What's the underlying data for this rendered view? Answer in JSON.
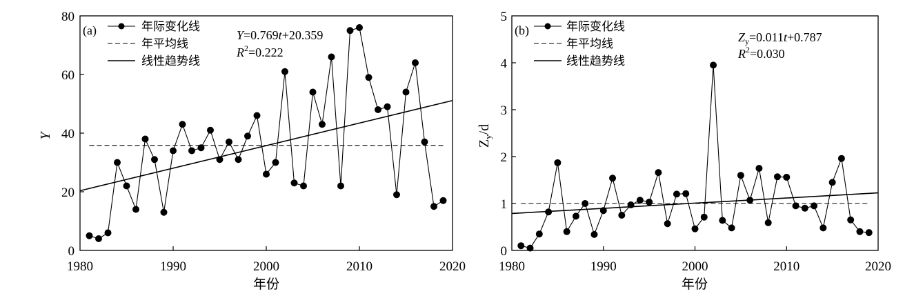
{
  "chart_data": [
    {
      "type": "line",
      "panel_label": "(a)",
      "xlabel": "年份",
      "ylabel": "Y",
      "xlim": [
        1980,
        2020
      ],
      "ylim": [
        0,
        80
      ],
      "x_ticks": [
        1980,
        1990,
        2000,
        2010,
        2020
      ],
      "y_ticks": [
        0,
        20,
        40,
        60,
        80
      ],
      "legend": [
        "年际变化线",
        "年平均线",
        "线性趋势线"
      ],
      "equation": {
        "lhs": "Y",
        "rhs_a": "=0.769",
        "var": "t",
        "rhs_b": "+20.359"
      },
      "r2": {
        "r": "R",
        "sup": "2",
        "val": "=0.222"
      },
      "mean": 35.8,
      "trend": {
        "slope": 0.769,
        "intercept": 20.359,
        "x0": 1980
      },
      "series": [
        {
          "name": "年际变化线",
          "x": [
            1981,
            1982,
            1983,
            1984,
            1985,
            1986,
            1987,
            1988,
            1989,
            1990,
            1991,
            1992,
            1993,
            1994,
            1995,
            1996,
            1997,
            1998,
            1999,
            2000,
            2001,
            2002,
            2003,
            2004,
            2005,
            2006,
            2007,
            2008,
            2009,
            2010,
            2011,
            2012,
            2013,
            2014,
            2015,
            2016,
            2017,
            2018,
            2019
          ],
          "values": [
            5,
            4,
            6,
            30,
            22,
            14,
            38,
            31,
            13,
            34,
            43,
            34,
            35,
            41,
            31,
            37,
            31,
            39,
            46,
            26,
            30,
            61,
            23,
            22,
            54,
            43,
            66,
            22,
            75,
            76,
            59,
            48,
            49,
            19,
            54,
            64,
            37,
            15,
            17
          ]
        }
      ]
    },
    {
      "type": "line",
      "panel_label": "(b)",
      "xlabel": "年份",
      "ylabel": "Zy/d",
      "ylabel_main": "Z",
      "ylabel_sub": "y",
      "ylabel_rest": "/d",
      "xlim": [
        1980,
        2020
      ],
      "ylim": [
        0,
        5
      ],
      "x_ticks": [
        1980,
        1990,
        2000,
        2010,
        2020
      ],
      "y_ticks": [
        0,
        1,
        2,
        3,
        4,
        5
      ],
      "legend": [
        "年际变化线",
        "年平均线",
        "线性趋势线"
      ],
      "equation": {
        "lhs": "Z",
        "lhs_sub": "y",
        "rhs_a": "=0.011",
        "var": "t",
        "rhs_b": "+0.787"
      },
      "r2": {
        "r": "R",
        "sup": "2",
        "val": "=0.030"
      },
      "mean": 1.0,
      "trend": {
        "slope": 0.011,
        "intercept": 0.787,
        "x0": 1980
      },
      "series": [
        {
          "name": "年际变化线",
          "x": [
            1981,
            1982,
            1983,
            1984,
            1985,
            1986,
            1987,
            1988,
            1989,
            1990,
            1991,
            1992,
            1993,
            1994,
            1995,
            1996,
            1997,
            1998,
            1999,
            2000,
            2001,
            2002,
            2003,
            2004,
            2005,
            2006,
            2007,
            2008,
            2009,
            2010,
            2011,
            2012,
            2013,
            2014,
            2015,
            2016,
            2017,
            2018,
            2019
          ],
          "values": [
            0.1,
            0.05,
            0.35,
            0.82,
            1.87,
            0.4,
            0.73,
            1.0,
            0.34,
            0.85,
            1.54,
            0.75,
            0.97,
            1.07,
            1.03,
            1.66,
            0.57,
            1.2,
            1.21,
            0.46,
            0.71,
            3.95,
            0.64,
            0.48,
            1.6,
            1.07,
            1.75,
            0.59,
            1.57,
            1.56,
            0.95,
            0.9,
            0.95,
            0.48,
            1.45,
            1.96,
            0.65,
            0.4,
            0.38
          ]
        }
      ]
    }
  ]
}
